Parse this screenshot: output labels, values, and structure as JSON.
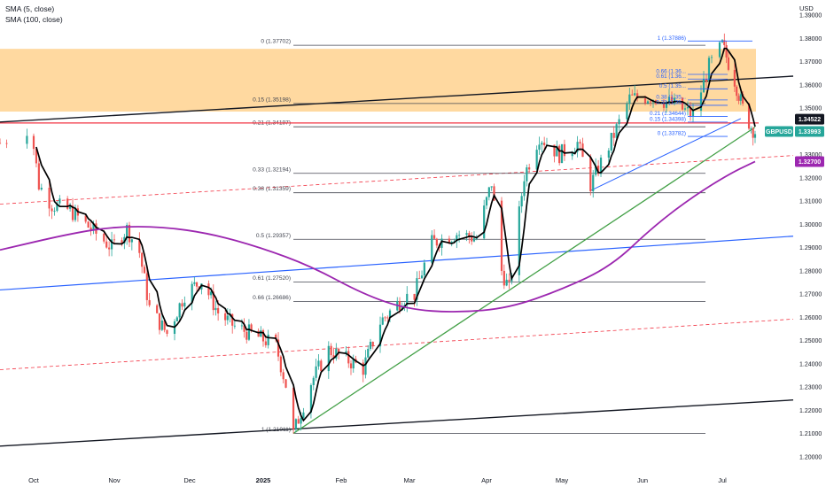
{
  "legend": {
    "sma5": "SMA (5, close)",
    "sma100": "SMA (100, close)"
  },
  "currency": "USD",
  "colors": {
    "bull": "#26a69a",
    "bear": "#ef5350",
    "sma5": "#000000",
    "sma100": "#9c27b0",
    "zone": "#ffcc80",
    "fibLine": "#434651",
    "fibRecent": "#2962ff",
    "trendBlack": "#131722",
    "trendGreen": "#43a047",
    "trendBlue": "#2962ff",
    "resistanceRed": "#f23645",
    "dashedRed": "#f23645",
    "priceBadge": "#131722",
    "symbolBadge": "#26a69a",
    "smaBadge": "#9c27b0"
  },
  "chart_data": {
    "type": "candlestick",
    "symbol": "GBPUSD",
    "ylim": [
      1.1935,
      1.3965
    ],
    "x_ticks": [
      "Oct",
      "Nov",
      "Dec",
      "2025",
      "Feb",
      "Mar",
      "Apr",
      "May",
      "Jun",
      "Jul"
    ],
    "y_ticks": [
      "1.39000",
      "1.38000",
      "1.37000",
      "1.36000",
      "1.35000",
      "1.34000",
      "1.33000",
      "1.32000",
      "1.31000",
      "1.30000",
      "1.29000",
      "1.28000",
      "1.27000",
      "1.26000",
      "1.25000",
      "1.24000",
      "1.23000",
      "1.22000",
      "1.21000",
      "1.20000"
    ],
    "x_dates": [
      "2024-09-26",
      "2024-10-01",
      "2024-11-01",
      "2024-12-01",
      "2025-01-01",
      "2025-02-01",
      "2025-03-01",
      "2025-04-01",
      "2025-05-01",
      "2025-06-01",
      "2025-07-01",
      "2025-07-17"
    ],
    "price_labels": {
      "last": {
        "value": 1.34522,
        "text": "1.34522"
      },
      "symbol": {
        "value": 1.33993,
        "name": "GBPUSD",
        "text": "1.33993"
      },
      "sma100": {
        "value": 1.327,
        "text": "1.32700"
      }
    },
    "fib_main": [
      {
        "level": "0",
        "price": 1.37702,
        "label": "0 (1.37702)"
      },
      {
        "level": "0.15",
        "price": 1.35198,
        "label": "0.15 (1.35198)"
      },
      {
        "level": "0.21",
        "price": 1.34197,
        "label": "0.21 (1.34197)"
      },
      {
        "level": "0.33",
        "price": 1.32194,
        "label": "0.33 (1.32194)"
      },
      {
        "level": "0.38",
        "price": 1.31359,
        "label": "0.38 (1.31359)"
      },
      {
        "level": "0.5",
        "price": 1.29357,
        "label": "0.5 (1.29357)"
      },
      {
        "level": "0.61",
        "price": 1.2752,
        "label": "0.61 (1.27520)"
      },
      {
        "level": "0.66",
        "price": 1.26686,
        "label": "0.66 (1.26686)"
      },
      {
        "level": "1",
        "price": 1.21011,
        "label": "1 (1.21011)"
      }
    ],
    "fib_recent": [
      {
        "level": "1",
        "price": 1.37886,
        "label": "1 (1.37886)"
      },
      {
        "level": "0.66",
        "price": 1.3645,
        "label": "0.66 (1.36..."
      },
      {
        "level": "0.61",
        "price": 1.3625,
        "label": "0.61 (1.36..."
      },
      {
        "level": "0.5",
        "price": 1.3583,
        "label": "0.5 (1.35..."
      },
      {
        "level": "0.38",
        "price": 1.3535,
        "label": "0.38 (1.35..."
      },
      {
        "level": "0.33",
        "price": 1.3512,
        "label": "0.33 (1.35..."
      },
      {
        "level": "0.21",
        "price": 1.34644,
        "label": "0.21 (1.34644)"
      },
      {
        "level": "0.15",
        "price": 1.34398,
        "label": "0.15 (1.34398)"
      },
      {
        "level": "0",
        "price": 1.33782,
        "label": "0 (1.33782)"
      }
    ],
    "resistance_zone": [
      1.3485,
      1.3755
    ],
    "horizontal_red": 1.3436,
    "trendlines": {
      "upper_channel": [
        [
          "2024-09-26",
          1.344
        ],
        [
          "2025-07-17",
          1.3628
        ]
      ],
      "lower_channel": [
        [
          "2024-09-26",
          1.2046
        ],
        [
          "2025-07-17",
          1.2235
        ]
      ],
      "green_support": [
        [
          "2025-01-13",
          1.2101
        ],
        [
          "2025-07-17",
          1.3418
        ]
      ],
      "blue_long": [
        [
          "2024-09-26",
          1.2718
        ],
        [
          "2025-07-17",
          1.2938
        ]
      ],
      "blue_short": [
        [
          "2025-05-12",
          1.3145
        ],
        [
          "2025-07-10",
          1.3455
        ]
      ],
      "red_dashed_top": [
        [
          "2024-09-26",
          1.3087
        ],
        [
          "2025-07-17",
          1.3286
        ]
      ],
      "red_dashed_bottom": [
        [
          "2024-09-26",
          1.2375
        ],
        [
          "2025-07-17",
          1.2582
        ]
      ]
    },
    "ohlc_path": [
      [
        "2024-09-26",
        1.335
      ],
      [
        "2024-09-30",
        1.3412
      ],
      [
        "2024-10-03",
        1.317
      ],
      [
        "2024-10-08",
        1.3085
      ],
      [
        "2024-10-15",
        1.306
      ],
      [
        "2024-10-23",
        1.298
      ],
      [
        "2024-10-31",
        1.29
      ],
      [
        "2024-11-06",
        1.298
      ],
      [
        "2024-11-11",
        1.288
      ],
      [
        "2024-11-15",
        1.264
      ],
      [
        "2024-11-22",
        1.253
      ],
      [
        "2024-11-29",
        1.27
      ],
      [
        "2024-12-06",
        1.276
      ],
      [
        "2024-12-13",
        1.262
      ],
      [
        "2024-12-20",
        1.256
      ],
      [
        "2024-12-31",
        1.251
      ],
      [
        "2025-01-06",
        1.248
      ],
      [
        "2025-01-10",
        1.231
      ],
      [
        "2025-01-13",
        1.2101
      ],
      [
        "2025-01-20",
        1.232
      ],
      [
        "2025-01-27",
        1.246
      ],
      [
        "2025-02-03",
        1.242
      ],
      [
        "2025-02-10",
        1.238
      ],
      [
        "2025-02-17",
        1.258
      ],
      [
        "2025-02-26",
        1.268
      ],
      [
        "2025-03-03",
        1.27
      ],
      [
        "2025-03-10",
        1.292
      ],
      [
        "2025-03-20",
        1.296
      ],
      [
        "2025-03-28",
        1.294
      ],
      [
        "2025-04-03",
        1.318
      ],
      [
        "2025-04-07",
        1.28
      ],
      [
        "2025-04-10",
        1.272
      ],
      [
        "2025-04-16",
        1.321
      ],
      [
        "2025-04-22",
        1.338
      ],
      [
        "2025-04-30",
        1.33
      ],
      [
        "2025-05-07",
        1.335
      ],
      [
        "2025-05-12",
        1.317
      ],
      [
        "2025-05-20",
        1.336
      ],
      [
        "2025-05-27",
        1.354
      ],
      [
        "2025-06-04",
        1.355
      ],
      [
        "2025-06-12",
        1.352
      ],
      [
        "2025-06-20",
        1.347
      ],
      [
        "2025-06-26",
        1.368
      ],
      [
        "2025-07-01",
        1.377
      ],
      [
        "2025-07-07",
        1.362
      ],
      [
        "2025-07-11",
        1.35
      ],
      [
        "2025-07-15",
        1.342
      ],
      [
        "2025-07-17",
        1.3399
      ]
    ],
    "sma100_path": [
      [
        "2024-09-26",
        1.289
      ],
      [
        "2024-10-15",
        1.296
      ],
      [
        "2024-11-01",
        1.299
      ],
      [
        "2024-11-20",
        1.299
      ],
      [
        "2024-12-10",
        1.296
      ],
      [
        "2024-12-31",
        1.29
      ],
      [
        "2025-01-20",
        1.282
      ],
      [
        "2025-02-10",
        1.27
      ],
      [
        "2025-02-28",
        1.2635
      ],
      [
        "2025-03-20",
        1.262
      ],
      [
        "2025-04-10",
        1.264
      ],
      [
        "2025-05-01",
        1.272
      ],
      [
        "2025-05-20",
        1.282
      ],
      [
        "2025-06-05",
        1.299
      ],
      [
        "2025-06-20",
        1.312
      ],
      [
        "2025-07-05",
        1.322
      ],
      [
        "2025-07-17",
        1.327
      ]
    ]
  }
}
